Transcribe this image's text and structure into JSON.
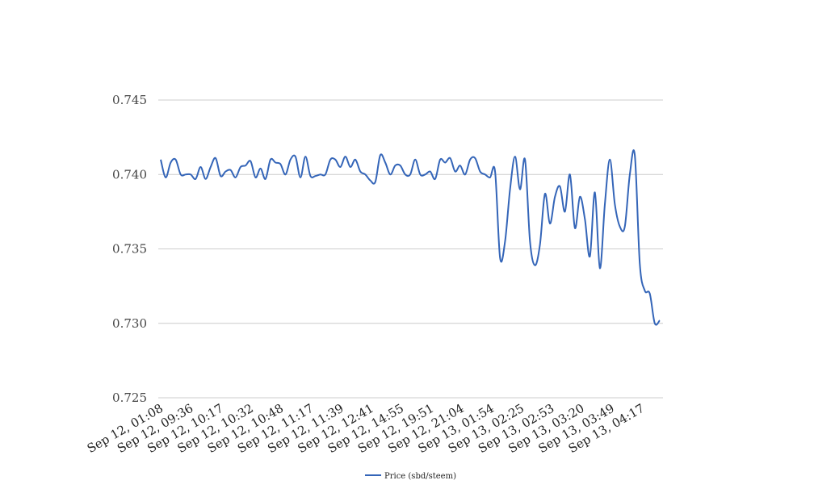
{
  "chart_data": {
    "type": "line",
    "title": "",
    "xlabel": "",
    "ylabel": "",
    "ylim": [
      0.725,
      0.745
    ],
    "yticks": [
      "0.745",
      "0.740",
      "0.735",
      "0.730",
      "0.725"
    ],
    "grid": true,
    "legend_position": "bottom",
    "x_tick_labels": [
      "Sep 12, 01:08",
      "Sep 12, 09:36",
      "Sep 12, 10:17",
      "Sep 12, 10:32",
      "Sep 12, 10:48",
      "Sep 12, 11:17",
      "Sep 12, 11:39",
      "Sep 12, 12:41",
      "Sep 12, 14:55",
      "Sep 12, 19:51",
      "Sep 12, 21:04",
      "Sep 13, 01:54",
      "Sep 13, 02:25",
      "Sep 13, 02:53",
      "Sep 13, 03:20",
      "Sep 13, 03:49",
      "Sep 13, 04:17"
    ],
    "series": [
      {
        "name": "Price (sbd/steem)",
        "color": "#3465b8",
        "values": [
          0.741,
          0.7398,
          0.7408,
          0.741,
          0.74,
          0.74,
          0.74,
          0.7397,
          0.7405,
          0.7397,
          0.7405,
          0.7411,
          0.7399,
          0.7402,
          0.7403,
          0.7398,
          0.7405,
          0.7406,
          0.7409,
          0.7398,
          0.7404,
          0.7397,
          0.741,
          0.7408,
          0.7407,
          0.74,
          0.741,
          0.7412,
          0.7398,
          0.7412,
          0.7399,
          0.7399,
          0.74,
          0.74,
          0.741,
          0.741,
          0.7405,
          0.7412,
          0.7405,
          0.741,
          0.7402,
          0.74,
          0.7396,
          0.7395,
          0.7413,
          0.7408,
          0.74,
          0.7406,
          0.7406,
          0.74,
          0.74,
          0.741,
          0.74,
          0.74,
          0.7402,
          0.7397,
          0.741,
          0.7408,
          0.7411,
          0.7402,
          0.7406,
          0.74,
          0.741,
          0.7411,
          0.7402,
          0.74,
          0.7398,
          0.7402,
          0.7344,
          0.7355,
          0.739,
          0.7412,
          0.739,
          0.741,
          0.7355,
          0.7339,
          0.7353,
          0.7387,
          0.7367,
          0.7385,
          0.7392,
          0.7375,
          0.74,
          0.7364,
          0.7385,
          0.737,
          0.7345,
          0.7388,
          0.7337,
          0.738,
          0.741,
          0.738,
          0.7365,
          0.7365,
          0.74,
          0.7413,
          0.734,
          0.7322,
          0.732,
          0.73,
          0.7302
        ]
      }
    ]
  }
}
